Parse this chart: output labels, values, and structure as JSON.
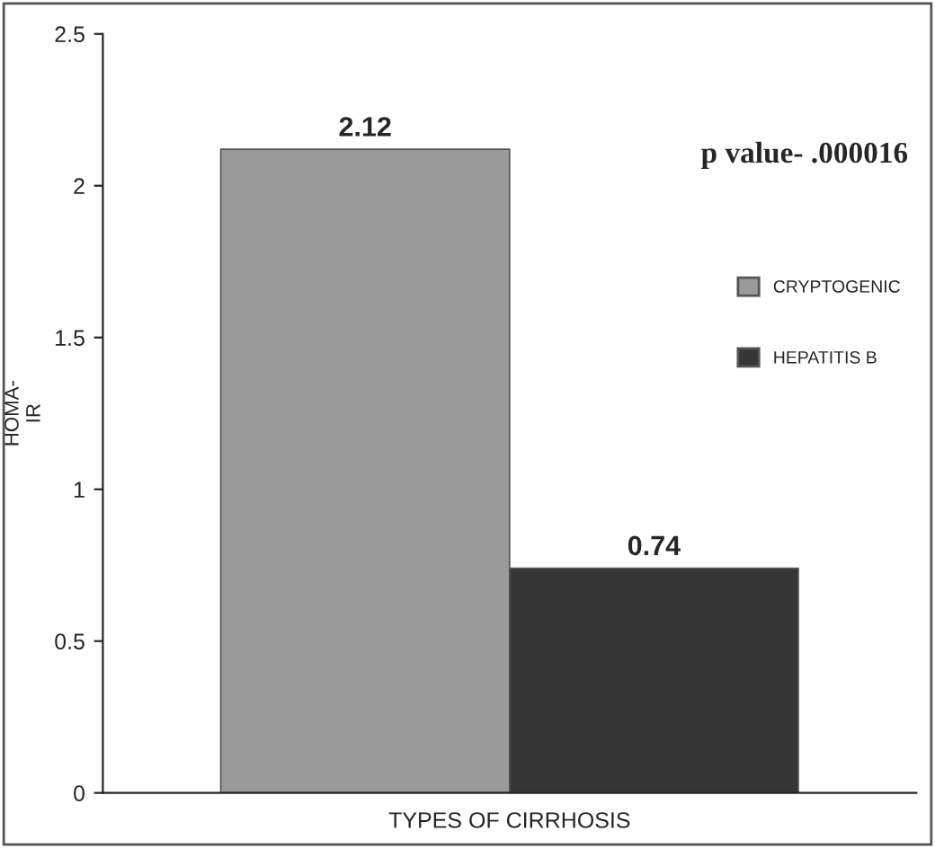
{
  "chart_data": {
    "type": "bar",
    "categories": [
      null
    ],
    "xlabel": "TYPES OF CIRRHOSIS",
    "ylabel": "HOMA-\nIR",
    "series": [
      {
        "name": "CRYPTOGENIC",
        "color": "#9a9a9a",
        "values": [
          2.12
        ]
      },
      {
        "name": "HEPATITIS B",
        "color": "#363636",
        "values": [
          0.74
        ]
      }
    ],
    "ylim": [
      0,
      2.5
    ],
    "yticks": [
      0,
      0.5,
      1,
      1.5,
      2,
      2.5
    ],
    "data_labels": true,
    "grid": false,
    "legend": "right",
    "annotations": [
      "p value- .000016"
    ]
  }
}
